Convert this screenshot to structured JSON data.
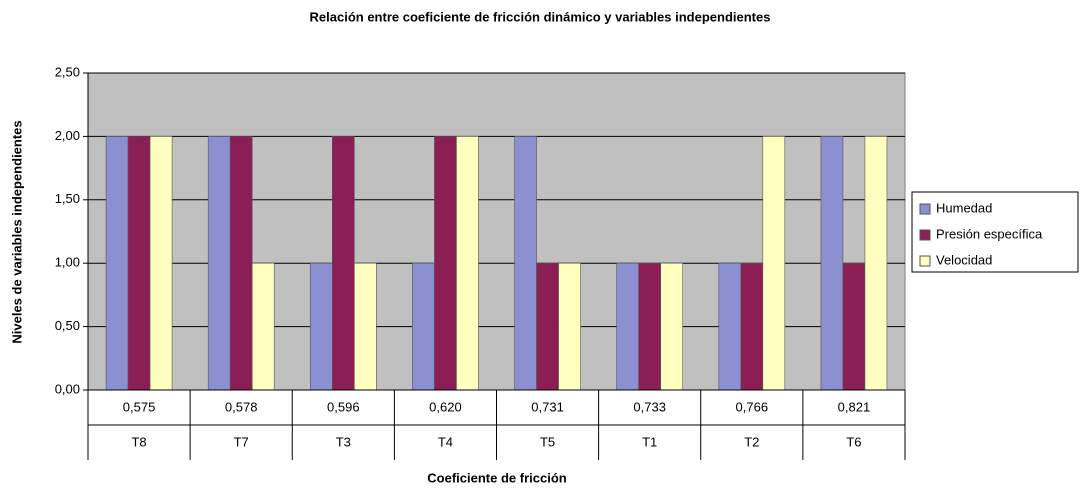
{
  "chart_data": {
    "type": "bar",
    "title": "Relación entre coeficiente de fricción dinámico y variables independientes",
    "xlabel": "Coeficiente de fricción",
    "ylabel": "Niveles de variables independientes",
    "categories": [
      "0,575",
      "0,578",
      "0,596",
      "0,620",
      "0,731",
      "0,733",
      "0,766",
      "0,821"
    ],
    "category_groups": [
      "T8",
      "T7",
      "T3",
      "T4",
      "T5",
      "T1",
      "T2",
      "T6"
    ],
    "series": [
      {
        "name": "Humedad",
        "color": "#8c8fd0",
        "values": [
          2,
          2,
          1,
          1,
          2,
          1,
          1,
          2
        ]
      },
      {
        "name": "Presión específica",
        "color": "#8b1f55",
        "values": [
          2,
          2,
          2,
          2,
          1,
          1,
          1,
          1
        ]
      },
      {
        "name": "Velocidad",
        "color": "#ffffc0",
        "values": [
          2,
          1,
          1,
          2,
          1,
          1,
          2,
          2
        ]
      }
    ],
    "ylim": [
      0,
      2.5
    ],
    "yticks": [
      {
        "value": 0,
        "label": "0,00"
      },
      {
        "value": 0.5,
        "label": "0,50"
      },
      {
        "value": 1,
        "label": "1,00"
      },
      {
        "value": 1.5,
        "label": "1,50"
      },
      {
        "value": 2,
        "label": "2,00"
      },
      {
        "value": 2.5,
        "label": "2,50"
      }
    ],
    "grid": true,
    "legend": "right"
  }
}
